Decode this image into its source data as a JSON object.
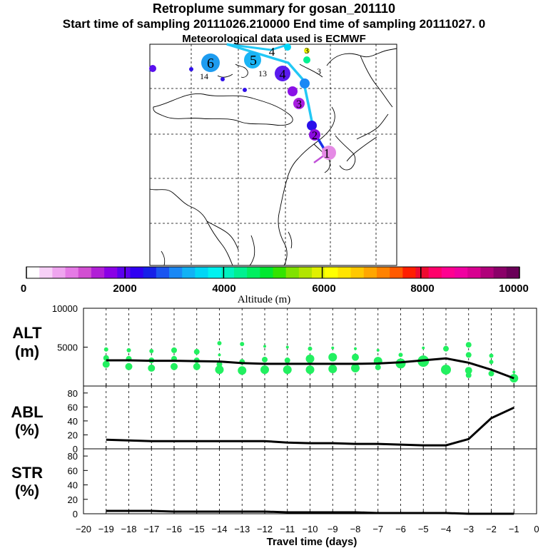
{
  "titles": {
    "line1": "Retroplume summary for gosan_201110",
    "line2": "Start time of sampling 20111026.210000      End time of sampling 20111027.     0",
    "line3": "Meteorological data used is ECMWF"
  },
  "colorbar": {
    "label": "Altitude (m)",
    "ticks": [
      "0",
      "2000",
      "4000",
      "6000",
      "8000",
      "10000"
    ],
    "colors": [
      "#ffffff",
      "#f7d0f7",
      "#efa5ef",
      "#e57ae5",
      "#d24fd2",
      "#b11fd6",
      "#8a00e6",
      "#5c00ee",
      "#3000f2",
      "#1620e8",
      "#1a55f0",
      "#1a88f5",
      "#11b2f5",
      "#00d6f5",
      "#00f2f0",
      "#00f2c0",
      "#00f090",
      "#00ee60",
      "#00e830",
      "#33e400",
      "#80e200",
      "#b2e400",
      "#e0f000",
      "#ffff00",
      "#ffe400",
      "#ffc800",
      "#ffa600",
      "#ff8200",
      "#ff5a00",
      "#ff1e00",
      "#ee0a30",
      "#ff006a",
      "#ff0090",
      "#f000a0",
      "#d80090",
      "#b0007a",
      "#8a0068",
      "#6a0058"
    ]
  },
  "map_track": {
    "labels": [
      "1",
      "2",
      "3",
      "4",
      "5",
      "6",
      "3",
      "4",
      "3",
      "13",
      "14"
    ]
  },
  "chart_data": [
    {
      "type": "scatter",
      "name": "ALT",
      "ylabel": "ALT\n(m)",
      "ylabel_top": "ALT",
      "ylabel_bottom": "(m)",
      "ylim": [
        0,
        10000
      ],
      "yticks": [
        5000,
        10000
      ],
      "ytick_labels": [
        "5000",
        "10000"
      ],
      "xlim": [
        -20,
        0
      ],
      "line": {
        "x": [
          -19,
          -18,
          -17,
          -16,
          -15,
          -14,
          -13,
          -12,
          -11,
          -10,
          -9,
          -8,
          -7,
          -6,
          -5,
          -4,
          -3,
          -2,
          -1
        ],
        "y": [
          3300,
          3300,
          3250,
          3250,
          3200,
          3150,
          2950,
          2850,
          2850,
          2850,
          2850,
          2850,
          2900,
          3050,
          3300,
          3550,
          3000,
          2100,
          1000
        ]
      },
      "points": [
        {
          "x": -19,
          "y": 4700,
          "s": 3
        },
        {
          "x": -19,
          "y": 3600,
          "s": 4
        },
        {
          "x": -19,
          "y": 2800,
          "s": 5
        },
        {
          "x": -18,
          "y": 4600,
          "s": 3
        },
        {
          "x": -18,
          "y": 3500,
          "s": 4
        },
        {
          "x": -18,
          "y": 2500,
          "s": 5
        },
        {
          "x": -17,
          "y": 4500,
          "s": 3
        },
        {
          "x": -17,
          "y": 3300,
          "s": 4
        },
        {
          "x": -17,
          "y": 2300,
          "s": 5
        },
        {
          "x": -16,
          "y": 4600,
          "s": 4
        },
        {
          "x": -16,
          "y": 3500,
          "s": 4
        },
        {
          "x": -16,
          "y": 2500,
          "s": 5
        },
        {
          "x": -15,
          "y": 4400,
          "s": 4
        },
        {
          "x": -15,
          "y": 3300,
          "s": 4
        },
        {
          "x": -15,
          "y": 2500,
          "s": 5
        },
        {
          "x": -14,
          "y": 5500,
          "s": 3
        },
        {
          "x": -14,
          "y": 4000,
          "s": 2
        },
        {
          "x": -14,
          "y": 2800,
          "s": 4
        },
        {
          "x": -14,
          "y": 2100,
          "s": 6
        },
        {
          "x": -13,
          "y": 5400,
          "s": 3
        },
        {
          "x": -13,
          "y": 3100,
          "s": 4
        },
        {
          "x": -13,
          "y": 2000,
          "s": 6
        },
        {
          "x": -12,
          "y": 5100,
          "s": 2
        },
        {
          "x": -12,
          "y": 3400,
          "s": 4
        },
        {
          "x": -12,
          "y": 2100,
          "s": 6
        },
        {
          "x": -11,
          "y": 5000,
          "s": 2
        },
        {
          "x": -11,
          "y": 3300,
          "s": 4
        },
        {
          "x": -11,
          "y": 2100,
          "s": 6
        },
        {
          "x": -10,
          "y": 4800,
          "s": 3
        },
        {
          "x": -10,
          "y": 3500,
          "s": 6
        },
        {
          "x": -10,
          "y": 2100,
          "s": 6
        },
        {
          "x": -9,
          "y": 4900,
          "s": 2
        },
        {
          "x": -9,
          "y": 3700,
          "s": 6
        },
        {
          "x": -9,
          "y": 2200,
          "s": 6
        },
        {
          "x": -8,
          "y": 4800,
          "s": 2
        },
        {
          "x": -8,
          "y": 3700,
          "s": 5
        },
        {
          "x": -8,
          "y": 2300,
          "s": 6
        },
        {
          "x": -7,
          "y": 4600,
          "s": 2
        },
        {
          "x": -7,
          "y": 3200,
          "s": 6
        },
        {
          "x": -7,
          "y": 2400,
          "s": 4
        },
        {
          "x": -6,
          "y": 4000,
          "s": 3
        },
        {
          "x": -6,
          "y": 2900,
          "s": 7
        },
        {
          "x": -5,
          "y": 4900,
          "s": 2
        },
        {
          "x": -5,
          "y": 3200,
          "s": 8
        },
        {
          "x": -4,
          "y": 4800,
          "s": 4
        },
        {
          "x": -4,
          "y": 2100,
          "s": 7
        },
        {
          "x": -3,
          "y": 5300,
          "s": 4
        },
        {
          "x": -3,
          "y": 4000,
          "s": 4
        },
        {
          "x": -3,
          "y": 2000,
          "s": 5
        },
        {
          "x": -3,
          "y": 1400,
          "s": 4
        },
        {
          "x": -2,
          "y": 3900,
          "s": 3
        },
        {
          "x": -2,
          "y": 3100,
          "s": 3
        },
        {
          "x": -2,
          "y": 1600,
          "s": 4
        },
        {
          "x": -1,
          "y": 1800,
          "s": 2
        },
        {
          "x": -1,
          "y": 1000,
          "s": 6
        }
      ]
    },
    {
      "type": "line",
      "name": "ABL",
      "ylabel_top": "ABL",
      "ylabel_bottom": "(%)",
      "ylim": [
        0,
        90
      ],
      "yticks": [
        0,
        20,
        40,
        60,
        80
      ],
      "ytick_labels": [
        "0",
        "20",
        "40",
        "60",
        "80"
      ],
      "xlim": [
        -20,
        0
      ],
      "x": [
        -19,
        -18,
        -17,
        -16,
        -15,
        -14,
        -13,
        -12,
        -11,
        -10,
        -9,
        -8,
        -7,
        -6,
        -5,
        -4,
        -3,
        -2,
        -1
      ],
      "y": [
        13,
        12,
        11,
        11,
        11,
        11,
        11,
        11,
        9,
        8,
        8,
        7,
        7,
        6,
        5,
        5,
        14,
        44,
        59
      ]
    },
    {
      "type": "line",
      "name": "STR",
      "ylabel_top": "STR",
      "ylabel_bottom": "(%)",
      "ylim": [
        0,
        90
      ],
      "yticks": [
        0,
        20,
        40,
        60,
        80
      ],
      "ytick_labels": [
        "0",
        "20",
        "40",
        "60",
        "80"
      ],
      "xlim": [
        -20,
        0
      ],
      "xlabel": "Travel time (days)",
      "xtick_labels": [
        "−20",
        "−19",
        "−18",
        "−17",
        "−16",
        "−15",
        "−14",
        "−13",
        "−12",
        "−11",
        "−10",
        "−9",
        "−8",
        "−7",
        "−6",
        "−5",
        "−4",
        "−3",
        "−2",
        "−1",
        "0"
      ],
      "x": [
        -19,
        -18,
        -17,
        -16,
        -15,
        -14,
        -13,
        -12,
        -11,
        -10,
        -9,
        -8,
        -7,
        -6,
        -5,
        -4,
        -3,
        -2,
        -1
      ],
      "y": [
        4,
        4,
        4,
        3,
        3,
        3,
        3,
        3,
        2,
        2,
        2,
        2,
        1,
        1,
        1,
        1,
        0,
        0,
        0
      ]
    }
  ]
}
